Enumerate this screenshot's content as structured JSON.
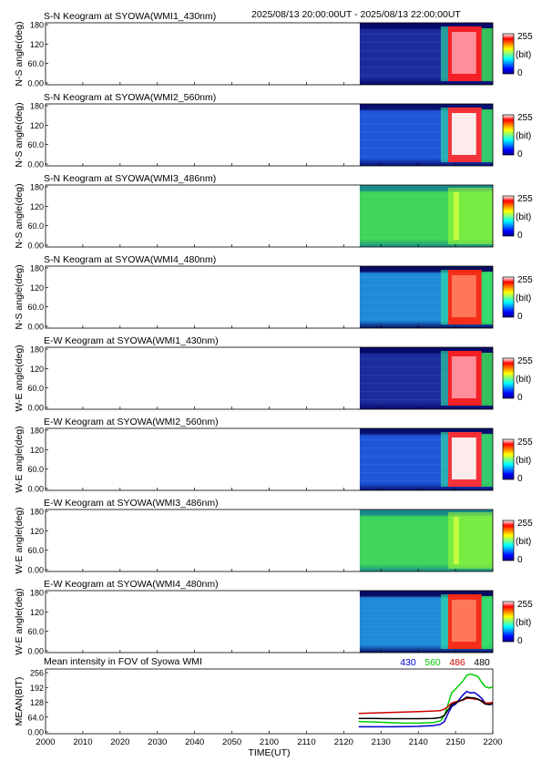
{
  "header": {
    "time_range": "2025/08/13 20:00:00UT - 2025/08/13 22:00:00UT"
  },
  "colorbar": {
    "max_label": "255",
    "unit_label": "(bit)",
    "min_label": "0",
    "colors": [
      "#00008f",
      "#0000ff",
      "#0080ff",
      "#00ffff",
      "#80ff80",
      "#ffff00",
      "#ff8000",
      "#ff0000",
      "#ffffff"
    ]
  },
  "chart_data": [
    {
      "type": "heatmap",
      "title": "S-N Keogram at SYOWA(WMI1_430nm)",
      "ylabel": "N-S angle(deg)",
      "ylim": [
        0,
        180
      ],
      "y_ticks": [
        "180",
        "120",
        "60.0",
        "0.00"
      ],
      "z_range": [
        0,
        255
      ],
      "data_start": "2124",
      "profile": {
        "bg": "#1c2c9e",
        "top_band": "#060a6a",
        "aurora": true,
        "aurora_color": "#ff2020",
        "core_color": "#ff9aa6"
      }
    },
    {
      "type": "heatmap",
      "title": "S-N Keogram at SYOWA(WMI2_560nm)",
      "ylabel": "N-S angle(deg)",
      "ylim": [
        0,
        180
      ],
      "y_ticks": [
        "180",
        "120",
        "60.0",
        "0.00"
      ],
      "z_range": [
        0,
        255
      ],
      "data_start": "2124",
      "profile": {
        "bg": "#1e56d8",
        "top_band": "#0a1070",
        "aurora": true,
        "aurora_color": "#ff3030",
        "core_color": "#ffffff"
      }
    },
    {
      "type": "heatmap",
      "title": "S-N Keogram at SYOWA(WMI3_486nm)",
      "ylabel": "N-S angle(deg)",
      "ylim": [
        0,
        180
      ],
      "y_ticks": [
        "180",
        "120",
        "60.0",
        "0.00"
      ],
      "z_range": [
        0,
        255
      ],
      "data_start": "2124",
      "profile": {
        "bg": "#3fd45a",
        "top_band": "#1a8a8a",
        "aurora": false,
        "aurora_color": "#a8ff30",
        "core_color": "#d8ff40"
      }
    },
    {
      "type": "heatmap",
      "title": "S-N Keogram at SYOWA(WMI4_480nm)",
      "ylabel": "N-S angle(deg)",
      "ylim": [
        0,
        180
      ],
      "y_ticks": [
        "180",
        "120",
        "60.0",
        "0.00"
      ],
      "z_range": [
        0,
        255
      ],
      "data_start": "2124",
      "profile": {
        "bg": "#1e8ad8",
        "top_band": "#080c60",
        "aurora": true,
        "aurora_color": "#ff2a10",
        "core_color": "#ff8060"
      }
    },
    {
      "type": "heatmap",
      "title": "E-W Keogram at SYOWA(WMI1_430nm)",
      "ylabel": "W-E angle(deg)",
      "ylim": [
        0,
        180
      ],
      "y_ticks": [
        "180",
        "120",
        "60.0",
        "0.00"
      ],
      "z_range": [
        0,
        255
      ],
      "data_start": "2124",
      "profile": {
        "bg": "#1c2c9e",
        "top_band": "#060a6a",
        "aurora": true,
        "aurora_color": "#ff2020",
        "core_color": "#ff9aa6"
      }
    },
    {
      "type": "heatmap",
      "title": "E-W Keogram at SYOWA(WMI2_560nm)",
      "ylabel": "W-E angle(deg)",
      "ylim": [
        0,
        180
      ],
      "y_ticks": [
        "180",
        "120",
        "60.0",
        "0.00"
      ],
      "z_range": [
        0,
        255
      ],
      "data_start": "2124",
      "profile": {
        "bg": "#1e56d8",
        "top_band": "#0a1070",
        "aurora": true,
        "aurora_color": "#ff3030",
        "core_color": "#ffffff"
      }
    },
    {
      "type": "heatmap",
      "title": "E-W Keogram at SYOWA(WMI3_486nm)",
      "ylabel": "W-E angle(deg)",
      "ylim": [
        0,
        180
      ],
      "y_ticks": [
        "180",
        "120",
        "60.0",
        "0.00"
      ],
      "z_range": [
        0,
        255
      ],
      "data_start": "2124",
      "profile": {
        "bg": "#3fd45a",
        "top_band": "#1a8a8a",
        "aurora": false,
        "aurora_color": "#a8ff30",
        "core_color": "#d8ff40"
      }
    },
    {
      "type": "heatmap",
      "title": "E-W Keogram at SYOWA(WMI4_480nm)",
      "ylabel": "W-E angle(deg)",
      "ylim": [
        0,
        180
      ],
      "y_ticks": [
        "180",
        "120",
        "60.0",
        "0.00"
      ],
      "z_range": [
        0,
        255
      ],
      "data_start": "2124",
      "profile": {
        "bg": "#1e8ad8",
        "top_band": "#080c60",
        "aurora": true,
        "aurora_color": "#ff2a10",
        "core_color": "#ff8060"
      }
    },
    {
      "type": "line",
      "title": "Mean intensity in FOV of Syowa WMI",
      "ylabel": "MEAN(BIT)",
      "xlabel": "TIME(UT)",
      "ylim": [
        0,
        256
      ],
      "y_ticks": [
        {
          "value": 256,
          "label": "256"
        },
        {
          "value": 192,
          "label": "192"
        },
        {
          "value": 128,
          "label": "128"
        },
        {
          "value": 64,
          "label": "64.0"
        },
        {
          "value": 0,
          "label": "0.00"
        }
      ],
      "xlim": [
        0,
        120
      ],
      "x_ticks": [
        {
          "value": 0,
          "label": "2000"
        },
        {
          "value": 10,
          "label": "2010"
        },
        {
          "value": 20,
          "label": "2020"
        },
        {
          "value": 30,
          "label": "2030"
        },
        {
          "value": 40,
          "label": "2040"
        },
        {
          "value": 50,
          "label": "2050"
        },
        {
          "value": 60,
          "label": "2100"
        },
        {
          "value": 70,
          "label": "2110"
        },
        {
          "value": 80,
          "label": "2120"
        },
        {
          "value": 90,
          "label": "2130"
        },
        {
          "value": 100,
          "label": "2140"
        },
        {
          "value": 110,
          "label": "2150"
        },
        {
          "value": 120,
          "label": "2200"
        }
      ],
      "series": [
        {
          "name": "430",
          "color": "#0000cc",
          "x": [
            84,
            88,
            92,
            96,
            100,
            104,
            106,
            107,
            108,
            109,
            110,
            112,
            113,
            114,
            115,
            116,
            117,
            118,
            119,
            120
          ],
          "y": [
            22,
            22,
            22,
            23,
            24,
            27,
            33,
            45,
            80,
            110,
            120,
            160,
            175,
            168,
            170,
            160,
            145,
            125,
            118,
            120
          ]
        },
        {
          "name": "560",
          "color": "#00cc00",
          "x": [
            84,
            88,
            92,
            96,
            100,
            104,
            106,
            107,
            108,
            109,
            110,
            112,
            113,
            114,
            115,
            116,
            117,
            118,
            119,
            120
          ],
          "y": [
            45,
            43,
            40,
            38,
            38,
            40,
            48,
            70,
            120,
            170,
            185,
            220,
            245,
            250,
            245,
            240,
            215,
            195,
            190,
            195
          ]
        },
        {
          "name": "486",
          "color": "#cc0000",
          "x": [
            84,
            88,
            92,
            96,
            100,
            104,
            106,
            107,
            108,
            109,
            110,
            112,
            113,
            114,
            115,
            116,
            117,
            118,
            119,
            120
          ],
          "y": [
            80,
            82,
            84,
            86,
            88,
            90,
            92,
            98,
            110,
            125,
            130,
            138,
            145,
            145,
            142,
            140,
            135,
            125,
            125,
            128
          ]
        },
        {
          "name": "480",
          "color": "#000000",
          "x": [
            84,
            88,
            92,
            96,
            100,
            104,
            106,
            107,
            108,
            109,
            110,
            112,
            113,
            114,
            115,
            116,
            117,
            118,
            119,
            120
          ],
          "y": [
            58,
            58,
            57,
            57,
            57,
            58,
            62,
            72,
            95,
            118,
            125,
            140,
            150,
            148,
            147,
            142,
            132,
            120,
            118,
            122
          ]
        }
      ]
    }
  ]
}
